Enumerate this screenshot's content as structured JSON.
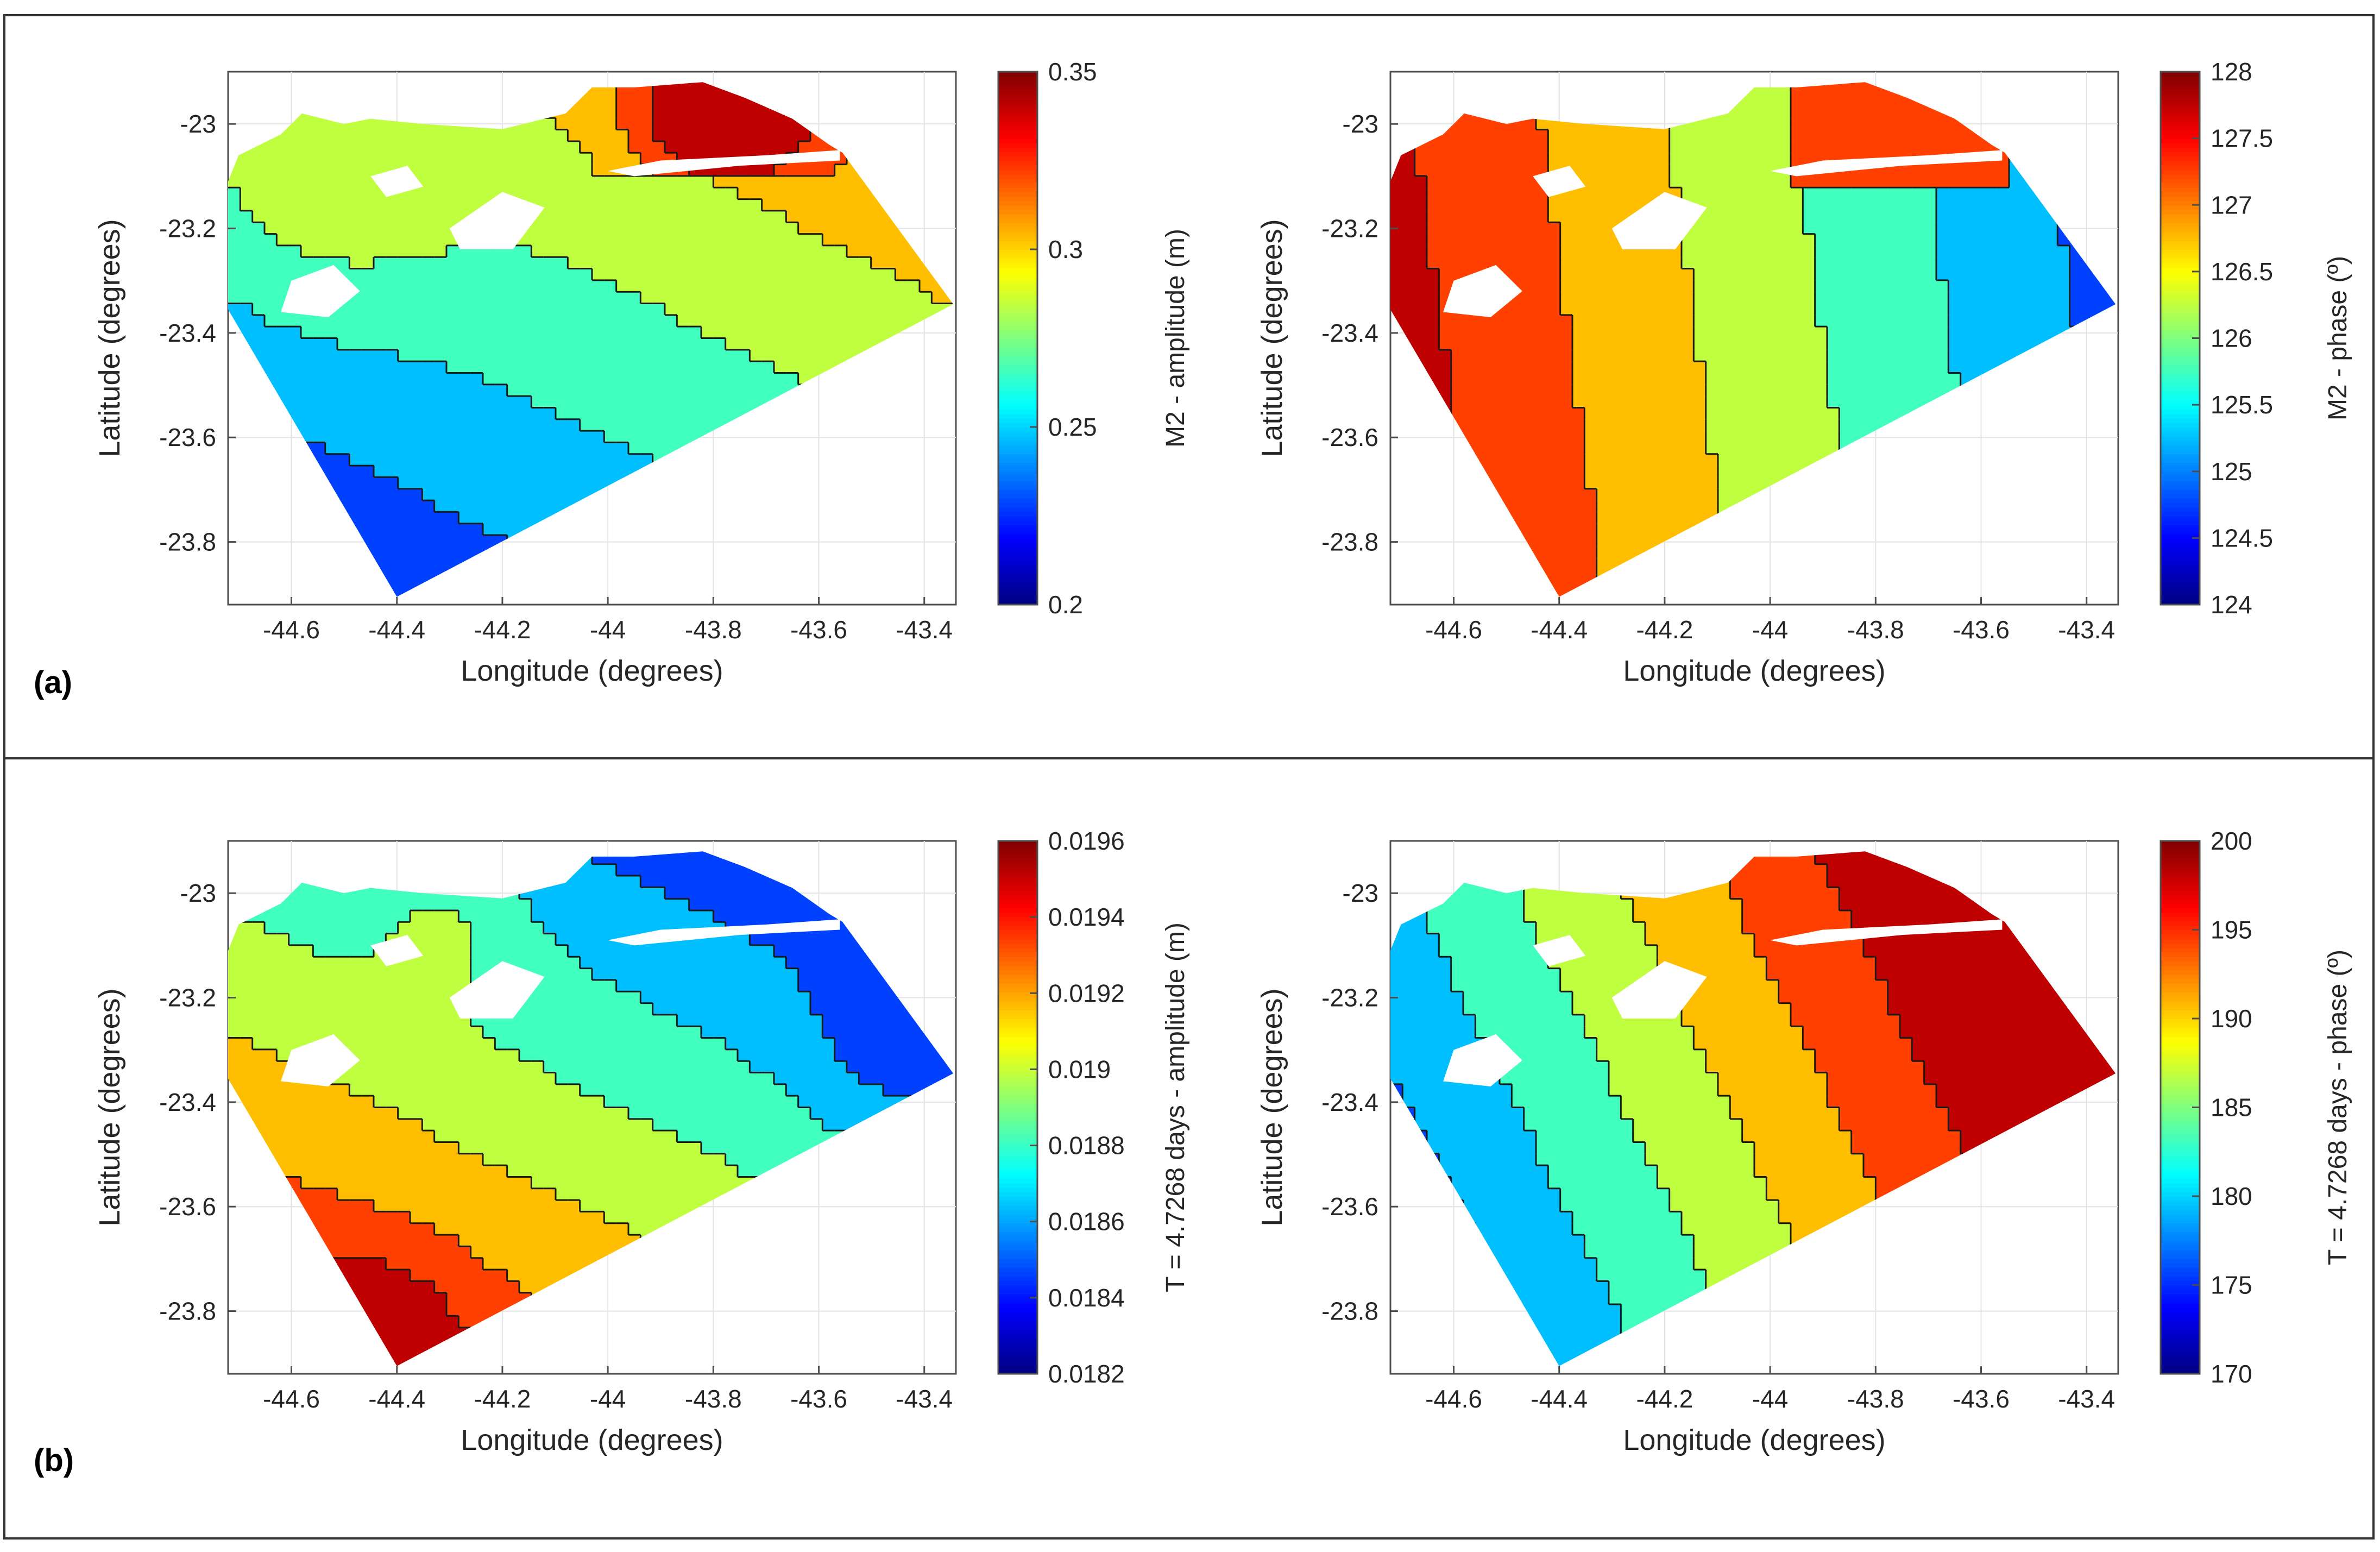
{
  "figure": {
    "row_labels": [
      "(a)",
      "(b)"
    ]
  },
  "chart_data": [
    {
      "type": "heatmap",
      "title": "",
      "xlabel": "Longitude (degrees)",
      "ylabel": "Latitude (degrees)",
      "xlim": [
        -44.72,
        -43.34
      ],
      "ylim": [
        -23.92,
        -22.9
      ],
      "xticks": [
        -44.6,
        -44.4,
        -44.2,
        -44,
        -43.8,
        -43.6,
        -43.4
      ],
      "yticks": [
        -23,
        -23.2,
        -23.4,
        -23.6,
        -23.8
      ],
      "colorbar": {
        "label": "M2  - amplitude (m)",
        "range": [
          0.2,
          0.35
        ],
        "ticks": [
          0.2,
          0.25,
          0.3,
          0.35
        ]
      },
      "field": "amplitude_m2",
      "panel": "a-left"
    },
    {
      "type": "heatmap",
      "title": "",
      "xlabel": "Longitude (degrees)",
      "ylabel": "Latitude (degrees)",
      "xlim": [
        -44.72,
        -43.34
      ],
      "ylim": [
        -23.92,
        -22.9
      ],
      "xticks": [
        -44.6,
        -44.4,
        -44.2,
        -44,
        -43.8,
        -43.6,
        -43.4
      ],
      "yticks": [
        -23,
        -23.2,
        -23.4,
        -23.6,
        -23.8
      ],
      "colorbar": {
        "label": "M2  - phase (º)",
        "range": [
          124,
          128
        ],
        "ticks": [
          124,
          124.5,
          125,
          125.5,
          126,
          126.5,
          127,
          127.5,
          128
        ]
      },
      "field": "phase_m2",
      "panel": "a-right"
    },
    {
      "type": "heatmap",
      "title": "",
      "xlabel": "Longitude (degrees)",
      "ylabel": "Latitude (degrees)",
      "xlim": [
        -44.72,
        -43.34
      ],
      "ylim": [
        -23.92,
        -22.9
      ],
      "xticks": [
        -44.6,
        -44.4,
        -44.2,
        -44,
        -43.8,
        -43.6,
        -43.4
      ],
      "yticks": [
        -23,
        -23.2,
        -23.4,
        -23.6,
        -23.8
      ],
      "colorbar": {
        "label": "T = 4.7268 days - amplitude (m)",
        "range": [
          0.0182,
          0.0196
        ],
        "ticks": [
          0.0182,
          0.0184,
          0.0186,
          0.0188,
          0.019,
          0.0192,
          0.0194,
          0.0196
        ]
      },
      "field": "amplitude_t",
      "panel": "b-left"
    },
    {
      "type": "heatmap",
      "title": "",
      "xlabel": "Longitude (degrees)",
      "ylabel": "Latitude (degrees)",
      "xlim": [
        -44.72,
        -43.34
      ],
      "ylim": [
        -23.92,
        -22.9
      ],
      "xticks": [
        -44.6,
        -44.4,
        -44.2,
        -44,
        -43.8,
        -43.6,
        -43.4
      ],
      "yticks": [
        -23,
        -23.2,
        -23.4,
        -23.6,
        -23.8
      ],
      "colorbar": {
        "label": "T = 4.7268 days  - phase (º)",
        "range": [
          170,
          200
        ],
        "ticks": [
          170,
          175,
          180,
          185,
          190,
          195,
          200
        ]
      },
      "field": "phase_t",
      "panel": "b-right"
    }
  ]
}
